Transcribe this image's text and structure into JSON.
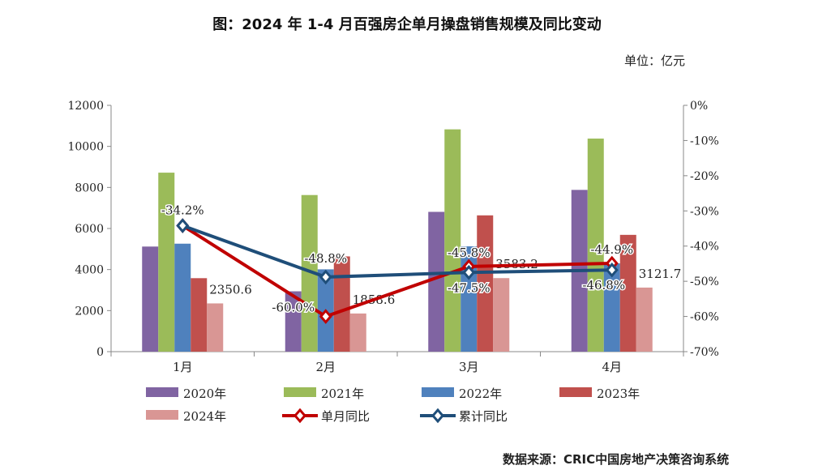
{
  "title": "图：2024 年 1-4 月百强房企单月操盘销售规模及同比变动",
  "unit": "单位：亿元",
  "source": "数据来源：CRIC中国房地产决策咨询系统",
  "chart_data": {
    "type": "bar",
    "categories": [
      "1月",
      "2月",
      "3月",
      "4月"
    ],
    "series": [
      {
        "name": "2020年",
        "color": "#8064a2",
        "values": [
          5120,
          2940,
          6810,
          7880
        ]
      },
      {
        "name": "2021年",
        "color": "#9bbb59",
        "values": [
          8720,
          7630,
          10830,
          10380
        ]
      },
      {
        "name": "2022年",
        "color": "#4f81bd",
        "values": [
          5260,
          4010,
          5130,
          4300
        ]
      },
      {
        "name": "2023年",
        "color": "#c0504d",
        "values": [
          3580,
          4640,
          6640,
          5690
        ]
      },
      {
        "name": "2024年",
        "color": "#d99694",
        "values": [
          2350.6,
          1858.6,
          3583.2,
          3121.7
        ],
        "labels": [
          "2350.6",
          "1858.6",
          "3583.2",
          "3121.7"
        ]
      }
    ],
    "line_series": [
      {
        "name": "单月同比",
        "color": "#c00000",
        "values": [
          -34.2,
          -60.0,
          -45.8,
          -44.9
        ],
        "labels": [
          "",
          "-60.0%",
          "-45.8%",
          "-44.9%"
        ]
      },
      {
        "name": "累计同比",
        "color": "#1f4e79",
        "values": [
          -34.2,
          -48.8,
          -47.5,
          -46.8
        ],
        "labels": [
          "-34.2%",
          "-48.8%",
          "-47.5%",
          "-46.8%"
        ]
      }
    ],
    "ylim": [
      0,
      12000
    ],
    "yticks": [
      "0",
      "2000",
      "4000",
      "6000",
      "8000",
      "10000",
      "12000"
    ],
    "y2lim": [
      -70,
      0
    ],
    "y2ticks": [
      "-70%",
      "-60%",
      "-50%",
      "-40%",
      "-30%",
      "-20%",
      "-10%",
      "0%"
    ],
    "legend": "bottom",
    "grid": false
  }
}
